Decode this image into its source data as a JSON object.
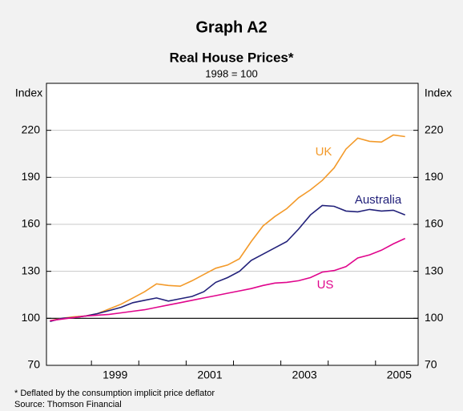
{
  "chart_data": {
    "type": "line",
    "title": "Graph A2",
    "subtitle": "Real House Prices*",
    "note": "1998 = 100",
    "y_label": "Index",
    "y2_label": "Index",
    "footnote": "*   Deflated by the consumption implicit price deflator",
    "source": "Source: Thomson Financial",
    "x": [
      1998.125,
      1998.375,
      1998.625,
      1998.875,
      1999.125,
      1999.375,
      1999.625,
      1999.875,
      2000.125,
      2000.375,
      2000.625,
      2000.875,
      2001.125,
      2001.375,
      2001.625,
      2001.875,
      2002.125,
      2002.375,
      2002.625,
      2002.875,
      2003.125,
      2003.375,
      2003.625,
      2003.875,
      2004.125,
      2004.375,
      2004.625,
      2004.875,
      2005.125,
      2005.375,
      2005.625
    ],
    "series": [
      {
        "name": "UK",
        "color": "#f39a2a",
        "values": [
          98.5,
          100,
          101,
          101.5,
          103,
          106,
          109,
          113,
          117,
          122,
          121,
          120.5,
          124,
          128,
          132,
          134,
          138,
          149,
          159,
          165,
          170,
          177,
          182,
          188,
          196,
          208,
          215,
          213,
          212.5,
          217,
          216
        ]
      },
      {
        "name": "Australia",
        "color": "#22217a",
        "values": [
          98,
          100,
          100.5,
          101.5,
          103,
          105,
          107,
          110,
          111.5,
          113,
          111,
          112.5,
          114,
          117,
          123,
          126,
          130,
          137,
          141,
          145,
          149,
          157,
          166,
          172,
          171.5,
          168.5,
          168,
          169.5,
          168.5,
          169,
          166
        ]
      },
      {
        "name": "US",
        "color": "#e0058c",
        "values": [
          98.5,
          99.5,
          100.5,
          101.5,
          102,
          102.5,
          103.5,
          104.5,
          105.5,
          107,
          108.5,
          110,
          111.5,
          113,
          114.5,
          116,
          117.5,
          119,
          121,
          122.5,
          123,
          124,
          126,
          129.5,
          130.5,
          133,
          138.5,
          140.5,
          143.5,
          147.5,
          151
        ]
      }
    ],
    "xlim": [
      1998.05,
      2005.9
    ],
    "xticks": [
      {
        "value": 1999.5,
        "label": "1999"
      },
      {
        "value": 2001.5,
        "label": "2001"
      },
      {
        "value": 2003.5,
        "label": "2003"
      },
      {
        "value": 2005.5,
        "label": "2005"
      }
    ],
    "x_minor_ticks": [
      1999,
      2000,
      2001,
      2002,
      2003,
      2004,
      2005
    ],
    "ylim": [
      70,
      250
    ],
    "yticks": [
      70,
      100,
      130,
      160,
      190,
      220
    ],
    "y2lim": [
      70,
      250
    ],
    "y2ticks": [
      70,
      100,
      130,
      160,
      190,
      220
    ],
    "grid": true,
    "baseline": 100
  }
}
